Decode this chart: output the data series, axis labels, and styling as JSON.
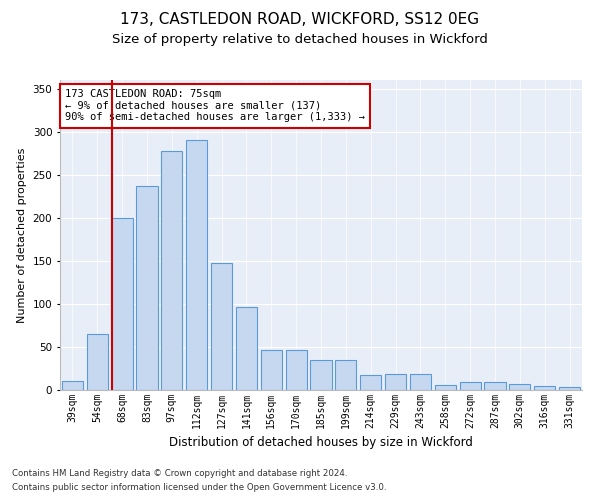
{
  "title1": "173, CASTLEDON ROAD, WICKFORD, SS12 0EG",
  "title2": "Size of property relative to detached houses in Wickford",
  "xlabel": "Distribution of detached houses by size in Wickford",
  "ylabel": "Number of detached properties",
  "categories": [
    "39sqm",
    "54sqm",
    "68sqm",
    "83sqm",
    "97sqm",
    "112sqm",
    "127sqm",
    "141sqm",
    "156sqm",
    "170sqm",
    "185sqm",
    "199sqm",
    "214sqm",
    "229sqm",
    "243sqm",
    "258sqm",
    "272sqm",
    "287sqm",
    "302sqm",
    "316sqm",
    "331sqm"
  ],
  "values": [
    10,
    65,
    200,
    237,
    278,
    290,
    148,
    96,
    46,
    46,
    35,
    35,
    18,
    19,
    19,
    6,
    9,
    9,
    7,
    5,
    3
  ],
  "bar_color": "#c5d8f0",
  "bar_edge_color": "#5b9bd5",
  "vline_color": "#cc0000",
  "annotation_text": "173 CASTLEDON ROAD: 75sqm\n← 9% of detached houses are smaller (137)\n90% of semi-detached houses are larger (1,333) →",
  "annotation_box_color": "#ffffff",
  "annotation_box_edge": "#cc0000",
  "footnote1": "Contains HM Land Registry data © Crown copyright and database right 2024.",
  "footnote2": "Contains public sector information licensed under the Open Government Licence v3.0.",
  "ylim": [
    0,
    360
  ],
  "yticks": [
    0,
    50,
    100,
    150,
    200,
    250,
    300,
    350
  ],
  "background_color": "#e8eef7",
  "title1_fontsize": 11,
  "title2_fontsize": 9.5
}
